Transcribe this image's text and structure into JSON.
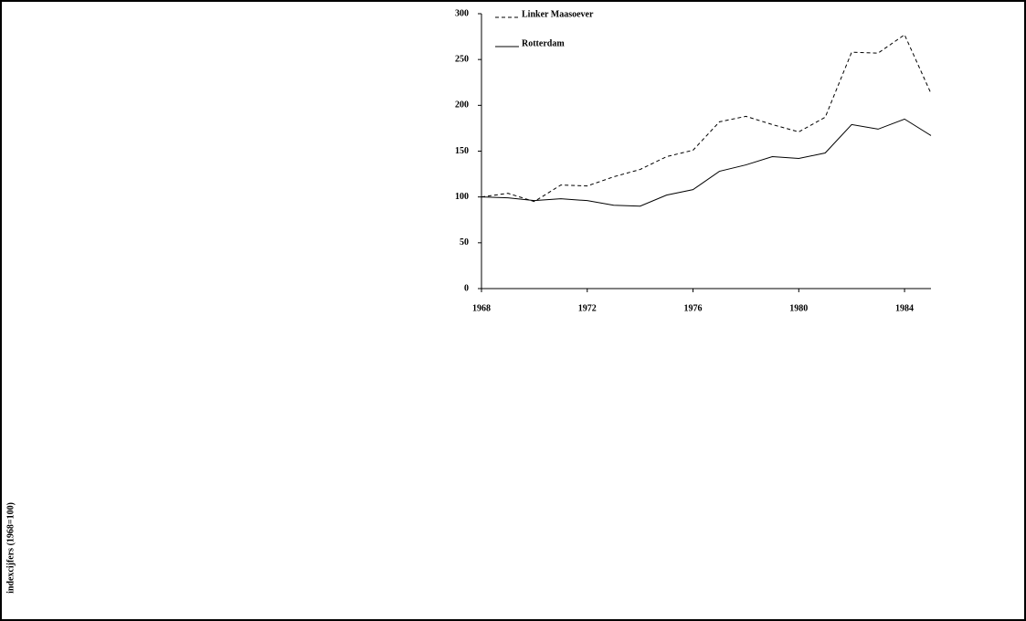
{
  "chart_data": {
    "type": "line",
    "y_label": "indexcijfers (1968=100)",
    "x": [
      1968,
      1969,
      1970,
      1971,
      1972,
      1973,
      1974,
      1975,
      1976,
      1977,
      1978,
      1979,
      1980,
      1981,
      1982,
      1983,
      1984,
      1985
    ],
    "series": [
      {
        "name": "Linker Maasoever",
        "color": "#000000",
        "dash": "4,3",
        "values": [
          100,
          104,
          95,
          113,
          112,
          122,
          130,
          144,
          151,
          182,
          188,
          179,
          171,
          187,
          258,
          257,
          277,
          213
        ]
      },
      {
        "name": "Rotterdam",
        "color": "#000000",
        "dash": "none",
        "values": [
          100,
          99,
          96,
          98,
          96,
          91,
          90,
          102,
          108,
          128,
          135,
          144,
          142,
          148,
          179,
          174,
          185,
          167
        ]
      }
    ],
    "xlim": [
      1968,
      1985
    ],
    "xticks": [
      1968,
      1972,
      1976,
      1980,
      1984
    ],
    "ylim": [
      0,
      300
    ],
    "yticks": [
      0,
      50,
      100,
      150,
      200,
      250,
      300
    ]
  }
}
